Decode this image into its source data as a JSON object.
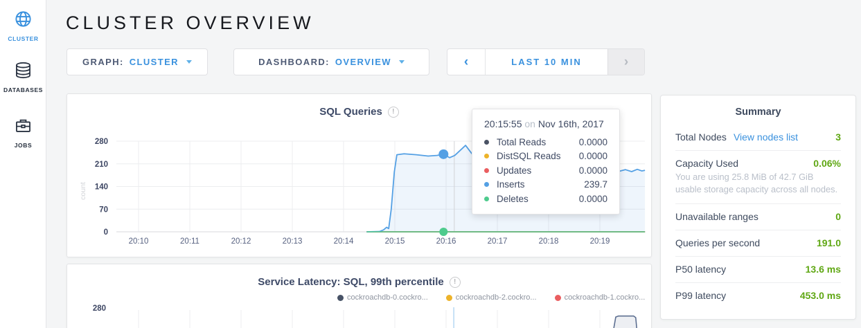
{
  "sidebar": {
    "items": [
      {
        "label": "CLUSTER",
        "icon": "globe-icon",
        "active": true
      },
      {
        "label": "DATABASES",
        "icon": "database-icon",
        "active": false
      },
      {
        "label": "JOBS",
        "icon": "briefcase-icon",
        "active": false
      }
    ]
  },
  "header": {
    "title": "CLUSTER OVERVIEW"
  },
  "controls": {
    "graph_label": "GRAPH:",
    "graph_value": "CLUSTER",
    "dashboard_label": "DASHBOARD:",
    "dashboard_value": "OVERVIEW",
    "time_prev": "‹",
    "time_label": "LAST 10 MIN",
    "time_next": "›"
  },
  "tooltip": {
    "time": "20:15:55",
    "on_word": "on",
    "date": "Nov 16th, 2017",
    "rows": [
      {
        "label": "Total Reads",
        "value": "0.0000",
        "color": "#4a5264"
      },
      {
        "label": "DistSQL Reads",
        "value": "0.0000",
        "color": "#edb32a"
      },
      {
        "label": "Updates",
        "value": "0.0000",
        "color": "#ea5e60"
      },
      {
        "label": "Inserts",
        "value": "239.7",
        "color": "#54a0e4"
      },
      {
        "label": "Deletes",
        "value": "0.0000",
        "color": "#4ecb8d"
      }
    ]
  },
  "summary": {
    "title": "Summary",
    "rows": [
      {
        "label": "Total Nodes",
        "link": "View nodes list",
        "value": "3",
        "subtitle": ""
      },
      {
        "label": "Capacity Used",
        "link": "",
        "value": "0.06%",
        "subtitle": "You are using 25.8 MiB of 42.7 GiB usable storage capacity across all nodes."
      },
      {
        "label": "Unavailable ranges",
        "link": "",
        "value": "0",
        "subtitle": ""
      },
      {
        "label": "Queries per second",
        "link": "",
        "value": "191.0",
        "subtitle": ""
      },
      {
        "label": "P50 latency",
        "link": "",
        "value": "13.6 ms",
        "subtitle": ""
      },
      {
        "label": "P99 latency",
        "link": "",
        "value": "453.0 ms",
        "subtitle": ""
      }
    ]
  },
  "colors": {
    "accent_blue": "#3a91de",
    "green_value": "#5fa713",
    "slate_text": "#3e4a67",
    "grid": "#ecedef",
    "baseline": "#d8dadd",
    "crosshair": "#d2d3d6",
    "crosshair_blue": "#b5d9f3"
  },
  "chart_data": [
    {
      "type": "line",
      "title": "SQL Queries",
      "ylabel": "count",
      "ylim": [
        0,
        280
      ],
      "yticks": [
        0,
        70,
        140,
        210,
        280
      ],
      "xticks": [
        {
          "m": 10,
          "label": "20:10"
        },
        {
          "m": 11,
          "label": "20:11"
        },
        {
          "m": 12,
          "label": "20:12"
        },
        {
          "m": 13,
          "label": "20:13"
        },
        {
          "m": 14,
          "label": "20:14"
        },
        {
          "m": 15,
          "label": "20:15"
        },
        {
          "m": 16,
          "label": "20:16"
        },
        {
          "m": 17,
          "label": "20:17"
        },
        {
          "m": 18,
          "label": "20:18"
        },
        {
          "m": 19,
          "label": "20:19"
        }
      ],
      "series": [
        {
          "name": "Total Reads",
          "color": "#4a5264",
          "fill": "",
          "points": [
            [
              14.45,
              0
            ],
            [
              19.88,
              0
            ]
          ]
        },
        {
          "name": "DistSQL Reads",
          "color": "#edb32a",
          "fill": "",
          "points": [
            [
              14.45,
              0
            ],
            [
              19.88,
              0
            ]
          ]
        },
        {
          "name": "Updates",
          "color": "#ea5e60",
          "fill": "",
          "points": [
            [
              14.45,
              0
            ],
            [
              19.88,
              0
            ]
          ]
        },
        {
          "name": "Inserts",
          "color": "#54a0e4",
          "fill": "rgba(84,160,228,0.10)",
          "points": [
            [
              14.45,
              0
            ],
            [
              14.7,
              1
            ],
            [
              14.78,
              6
            ],
            [
              14.84,
              14
            ],
            [
              14.88,
              10
            ],
            [
              14.93,
              70
            ],
            [
              14.99,
              185
            ],
            [
              15.04,
              238
            ],
            [
              15.18,
              241
            ],
            [
              15.42,
              238
            ],
            [
              15.65,
              234
            ],
            [
              15.82,
              236
            ],
            [
              15.95,
              239.7
            ],
            [
              16.07,
              229
            ],
            [
              16.17,
              236
            ],
            [
              16.38,
              267
            ],
            [
              16.5,
              242
            ],
            [
              16.61,
              218
            ],
            [
              16.75,
              206
            ],
            [
              17.0,
              211
            ],
            [
              17.3,
              202
            ],
            [
              17.6,
              209
            ],
            [
              17.9,
              204
            ],
            [
              18.2,
              208
            ],
            [
              18.5,
              201
            ],
            [
              18.75,
              207
            ],
            [
              19.0,
              196
            ],
            [
              19.2,
              190
            ],
            [
              19.35,
              186
            ],
            [
              19.5,
              192
            ],
            [
              19.62,
              186
            ],
            [
              19.73,
              193
            ],
            [
              19.82,
              188
            ],
            [
              19.88,
              190
            ]
          ]
        },
        {
          "name": "Deletes",
          "color": "#4ecb8d",
          "fill": "",
          "points": [
            [
              14.45,
              0
            ],
            [
              19.88,
              0
            ]
          ]
        }
      ],
      "hover": {
        "crosshair_minute": 16.16,
        "dot_minute": 15.95,
        "dots": [
          {
            "series": "Inserts",
            "value": 239.7,
            "color": "#54a0e4",
            "r": 7
          },
          {
            "series": "Deletes",
            "value": 0,
            "color": "#4ecb8d",
            "r": 6
          }
        ]
      }
    },
    {
      "type": "line",
      "title": "Service Latency: SQL, 99th percentile",
      "visible_ytick": "280",
      "xgrid_minutes": [
        10,
        11,
        12,
        13,
        14,
        15,
        16,
        17,
        18,
        19
      ],
      "legend": [
        {
          "label": "cockroachdb-0.cockro...",
          "color": "#475266"
        },
        {
          "label": "cockroachdb-2.cockro...",
          "color": "#edb32a"
        },
        {
          "label": "cockroachdb-1.cockro...",
          "color": "#ea5e60"
        }
      ],
      "hover": {
        "crosshair_minute": 16.15
      },
      "visible_series": [
        {
          "name": "cockroachdb-0.cockro...",
          "color": "#5d6f91",
          "fill": "#edeff3",
          "points_frac": [
            [
              19.27,
              0
            ],
            [
              19.31,
              0.58
            ],
            [
              19.36,
              0.63
            ],
            [
              19.66,
              0.63
            ],
            [
              19.7,
              0.55
            ],
            [
              19.72,
              0
            ]
          ]
        }
      ]
    }
  ]
}
